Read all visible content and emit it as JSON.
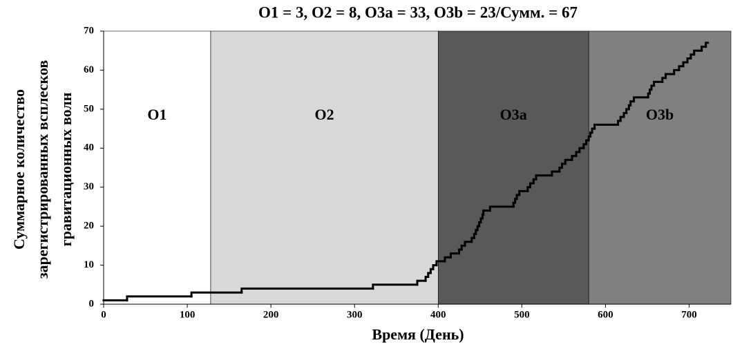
{
  "chart_data": {
    "type": "step",
    "title": "O1 = 3, O2 = 8, O3a = 33, O3b = 23/Сумм. = 67",
    "x_label": "Время (День)",
    "y_label": [
      "Суммарное количество",
      "зарегистрированных всплесков",
      "гравитационных волн"
    ],
    "xlim": [
      0,
      750
    ],
    "ylim": [
      0,
      70
    ],
    "xticks": [
      0,
      100,
      200,
      300,
      400,
      500,
      600,
      700
    ],
    "yticks": [
      0,
      10,
      20,
      30,
      40,
      50,
      60,
      70
    ],
    "regions": [
      {
        "name": "O1",
        "start": 0,
        "color": "#ffffff"
      },
      {
        "name": "O2",
        "start": 128,
        "color": "#d9d9d9"
      },
      {
        "name": "O3a",
        "start": 400,
        "color": "#595959"
      },
      {
        "name": "O3b",
        "start": 580,
        "color": "#808080"
      }
    ],
    "series": [
      {
        "color": "#000000",
        "x": [
          0,
          28,
          105,
          165,
          322,
          375,
          385,
          388,
          391,
          394,
          398,
          408,
          415,
          425,
          428,
          432,
          440,
          443,
          445,
          447,
          449,
          451,
          453,
          454,
          462,
          490,
          492,
          494,
          497,
          507,
          510,
          514,
          517,
          536,
          545,
          548,
          552,
          560,
          565,
          569,
          574,
          577,
          580,
          582,
          584,
          587,
          615,
          618,
          622,
          625,
          628,
          630,
          634,
          651,
          653,
          655,
          658,
          668,
          672,
          682,
          688,
          693,
          698,
          702,
          706,
          715,
          720
        ],
        "values": [
          1,
          2,
          3,
          4,
          5,
          6,
          7,
          8,
          9,
          10,
          11,
          12,
          13,
          14,
          15,
          16,
          17,
          18,
          19,
          20,
          21,
          22,
          23,
          24,
          25,
          26,
          27,
          28,
          29,
          30,
          31,
          32,
          33,
          34,
          35,
          36,
          37,
          38,
          39,
          40,
          41,
          42,
          43,
          44,
          45,
          46,
          47,
          48,
          49,
          50,
          51,
          52,
          53,
          54,
          55,
          56,
          57,
          58,
          59,
          60,
          61,
          62,
          63,
          64,
          65,
          66,
          67
        ]
      }
    ]
  }
}
